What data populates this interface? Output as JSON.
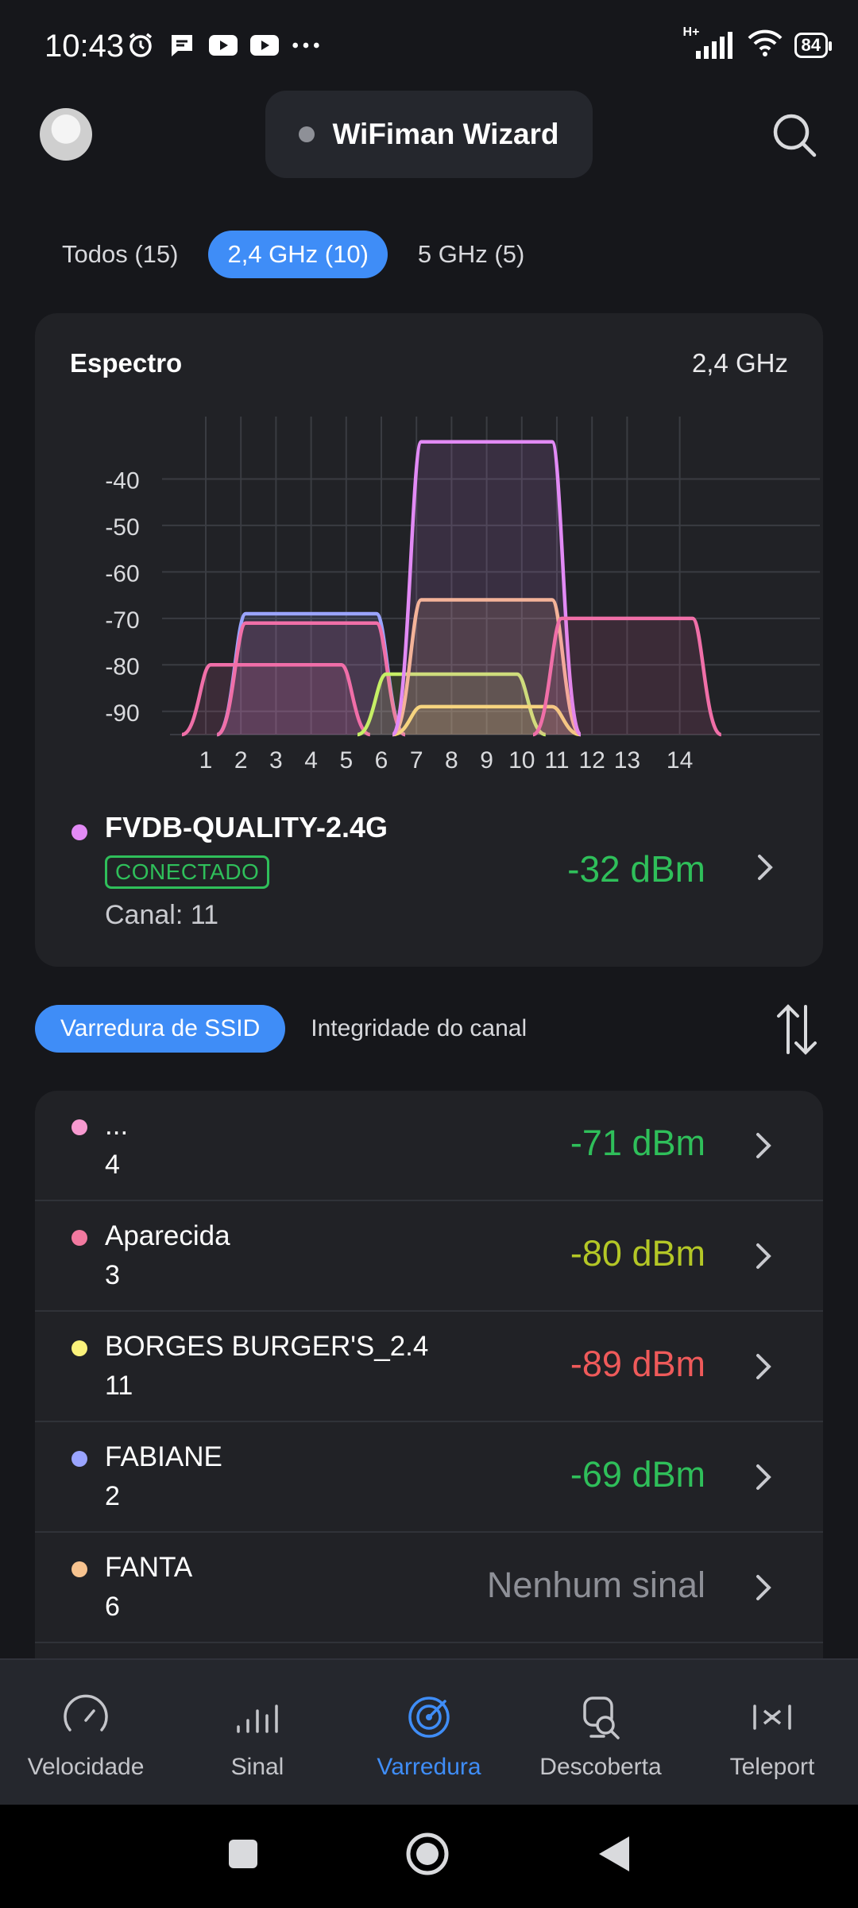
{
  "status_bar": {
    "time": "10:43",
    "network": "H+",
    "battery": "84"
  },
  "header": {
    "title": "WiFiman Wizard"
  },
  "filters": [
    {
      "label": "Todos (15)",
      "active": false
    },
    {
      "label": "2,4 GHz (10)",
      "active": true
    },
    {
      "label": "5 GHz (5)",
      "active": false
    }
  ],
  "spectrum": {
    "title": "Espectro",
    "band": "2,4 GHz",
    "connected": {
      "ssid": "FVDB-QUALITY-2.4G",
      "badge": "CONECTADO",
      "channel": "Canal: 11",
      "signal": "-32 dBm",
      "color": "#e28af5"
    }
  },
  "chart_data": {
    "type": "area",
    "y_ticks": [
      "-40",
      "-50",
      "-60",
      "-70",
      "-80",
      "-90"
    ],
    "x_ticks": [
      "1",
      "2",
      "3",
      "4",
      "5",
      "6",
      "7",
      "8",
      "9",
      "10",
      "11",
      "12",
      "13",
      "14"
    ],
    "ylim": [
      -95,
      -30
    ],
    "xlim": [
      -1,
      16
    ],
    "series": [
      {
        "channel": 4,
        "dbm": -69,
        "color": "#9aa4ff"
      },
      {
        "channel": 3,
        "dbm": -80,
        "color": "#f06fa8"
      },
      {
        "channel": 4,
        "dbm": -71,
        "color": "#f06fa8"
      },
      {
        "channel": 8,
        "dbm": -82,
        "color": "#c6ef66"
      },
      {
        "channel": 9,
        "dbm": -89,
        "color": "#fbe56a"
      },
      {
        "channel": 9,
        "dbm": -66,
        "color": "#f7b98c"
      },
      {
        "channel": 9,
        "dbm": -32,
        "color": "#e28af5"
      },
      {
        "channel": 13,
        "dbm": -70,
        "color": "#f06fa8"
      }
    ]
  },
  "segment": {
    "ssid_scan": "Varredura de SSID",
    "channel_health": "Integridade do canal"
  },
  "networks": [
    {
      "name": "...",
      "channel": "4",
      "signal": "-71 dBm",
      "dot": "#f79ad0",
      "signal_color": "#2fbf5a"
    },
    {
      "name": "Aparecida",
      "channel": "3",
      "signal": "-80 dBm",
      "dot": "#f2799f",
      "signal_color": "#b4c726"
    },
    {
      "name": "BORGES BURGER'S_2.4",
      "channel": "11",
      "signal": "-89 dBm",
      "dot": "#fbf27b",
      "signal_color": "#ef5a5a"
    },
    {
      "name": "FABIANE",
      "channel": "2",
      "signal": "-69 dBm",
      "dot": "#9aa4ff",
      "signal_color": "#2fbf5a"
    },
    {
      "name": "FANTA",
      "channel": "6",
      "signal": "Nenhum sinal",
      "dot": "#f7c38f",
      "signal_color": "#8e9097"
    }
  ],
  "bottom_nav": [
    {
      "label": "Velocidade",
      "icon": "speedometer-icon",
      "active": false
    },
    {
      "label": "Sinal",
      "icon": "signal-bars-icon",
      "active": false
    },
    {
      "label": "Varredura",
      "icon": "radar-icon",
      "active": true
    },
    {
      "label": "Descoberta",
      "icon": "discovery-icon",
      "active": false
    },
    {
      "label": "Teleport",
      "icon": "teleport-icon",
      "active": false
    }
  ]
}
